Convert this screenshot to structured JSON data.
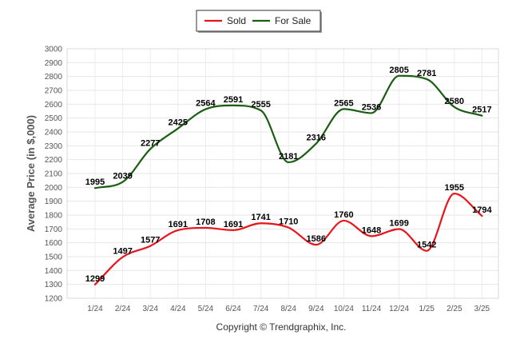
{
  "chart_data": {
    "type": "line",
    "title": "",
    "xlabel": "",
    "ylabel": "Average Price (in $,000)",
    "categories": [
      "1/24",
      "2/24",
      "3/24",
      "4/24",
      "5/24",
      "6/24",
      "7/24",
      "8/24",
      "9/24",
      "10/24",
      "11/24",
      "12/24",
      "1/25",
      "2/25",
      "3/25"
    ],
    "ylim": [
      1200,
      3000
    ],
    "yticks": [
      1200,
      1300,
      1400,
      1500,
      1600,
      1700,
      1800,
      1900,
      2000,
      2100,
      2200,
      2300,
      2400,
      2500,
      2600,
      2700,
      2800,
      2900,
      3000
    ],
    "grid": true,
    "smooth": true,
    "legend_position": "top-center",
    "series": [
      {
        "name": "Sold",
        "color": "#e8141b",
        "values": [
          1299,
          1497,
          1577,
          1691,
          1708,
          1691,
          1741,
          1710,
          1586,
          1760,
          1648,
          1699,
          1542,
          1955,
          1794
        ]
      },
      {
        "name": "For Sale",
        "color": "#1a5e12",
        "values": [
          1995,
          2039,
          2277,
          2425,
          2564,
          2591,
          2555,
          2181,
          2316,
          2565,
          2536,
          2805,
          2781,
          2580,
          2517
        ]
      }
    ],
    "footer": "Copyright © Trendgraphix, Inc."
  }
}
